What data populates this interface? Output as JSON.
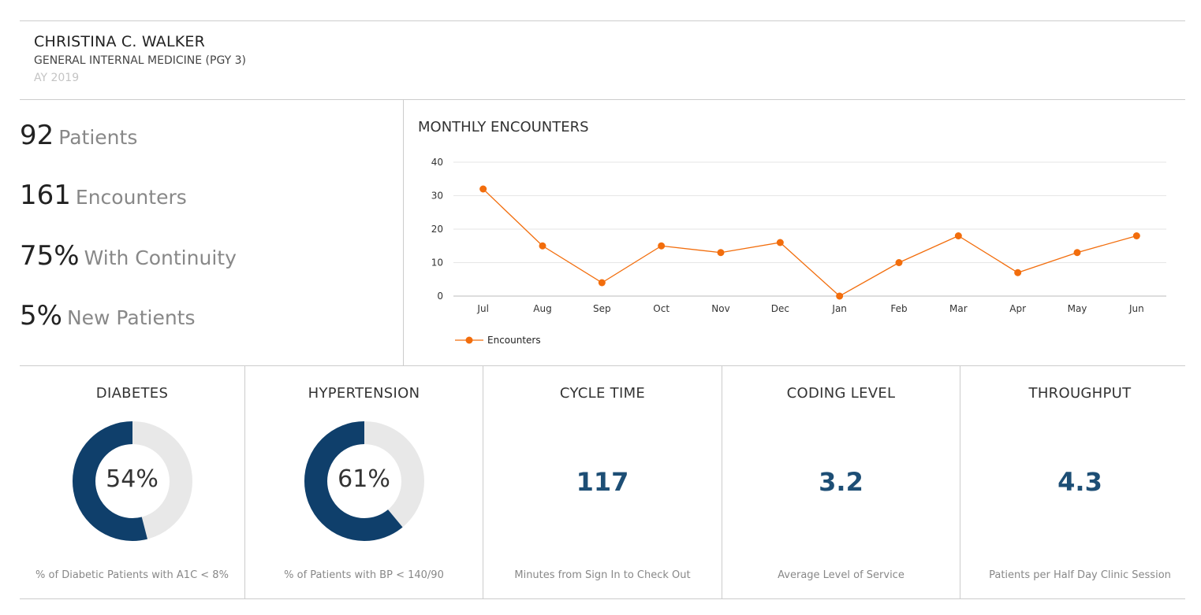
{
  "header": {
    "name": "CHRISTINA C. WALKER",
    "program": "GENERAL INTERNAL MEDICINE (PGY 3)",
    "academic_year": "AY 2019"
  },
  "stats": [
    {
      "value": "92",
      "label": "Patients"
    },
    {
      "value": "161",
      "label": "Encounters"
    },
    {
      "value": "75%",
      "label": "With Continuity"
    },
    {
      "value": "5%",
      "label": "New Patients"
    }
  ],
  "monthly_chart": {
    "title": "MONTHLY ENCOUNTERS"
  },
  "chart_data": {
    "type": "line",
    "title": "MONTHLY ENCOUNTERS",
    "categories": [
      "Jul",
      "Aug",
      "Sep",
      "Oct",
      "Nov",
      "Dec",
      "Jan",
      "Feb",
      "Mar",
      "Apr",
      "May",
      "Jun"
    ],
    "series": [
      {
        "name": "Encounters",
        "values": [
          32,
          15,
          4,
          15,
          13,
          16,
          0,
          10,
          18,
          7,
          13,
          18
        ],
        "color": "#f26d0c"
      }
    ],
    "yticks": [
      0,
      10,
      20,
      30,
      40
    ],
    "ylim": [
      0,
      40
    ],
    "grid": true,
    "legend_position": "bottom-left"
  },
  "metrics": {
    "diabetes": {
      "title": "DIABETES",
      "value": "54%",
      "percent": 54,
      "caption": "% of Diabetic Patients with A1C < 8%"
    },
    "hypertension": {
      "title": "HYPERTENSION",
      "value": "61%",
      "percent": 61,
      "caption": "% of Patients with BP < 140/90"
    },
    "cycle_time": {
      "title": "CYCLE TIME",
      "value": "117",
      "caption": "Minutes from Sign In to Check Out"
    },
    "coding_level": {
      "title": "CODING LEVEL",
      "value": "3.2",
      "caption": "Average Level of Service"
    },
    "throughput": {
      "title": "THROUGHPUT",
      "value": "4.3",
      "caption": "Patients per Half Day Clinic Session"
    }
  },
  "colors": {
    "donut_fill": "#0f3f6b",
    "donut_track": "#e8e8e8",
    "metric_value": "#1d4e75",
    "line": "#f26d0c"
  }
}
